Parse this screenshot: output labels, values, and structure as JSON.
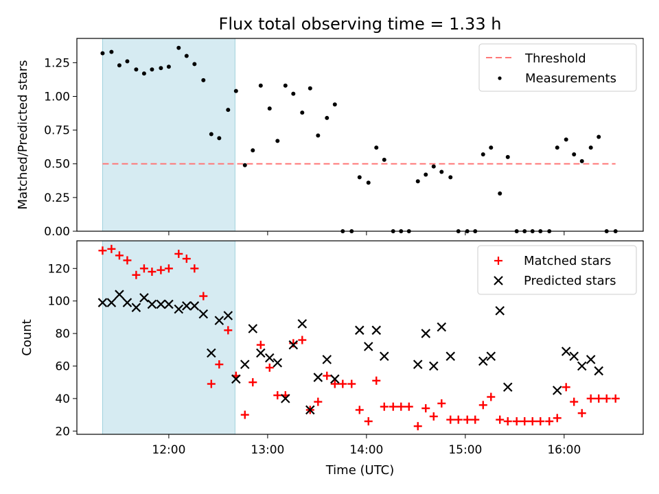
{
  "chart_data": [
    {
      "type": "scatter",
      "title": "Flux total observing time = 1.33 h",
      "xlabel": "",
      "ylabel": "Matched/Predicted stars",
      "xlim": [
        11.07,
        16.8
      ],
      "ylim": [
        0.0,
        1.43
      ],
      "yticks": [
        0.0,
        0.25,
        0.5,
        0.75,
        1.0,
        1.25
      ],
      "ytick_labels": [
        "0.00",
        "0.25",
        "0.50",
        "0.75",
        "1.00",
        "1.25"
      ],
      "shaded_span": [
        11.33,
        12.67
      ],
      "threshold": {
        "name": "Threshold",
        "value": 0.5,
        "x_range": [
          11.33,
          16.52
        ],
        "color": "#ff7777"
      },
      "legend": [
        "Threshold",
        "Measurements"
      ],
      "legend_position": "top-right",
      "series": [
        {
          "name": "Measurements",
          "marker": "dot",
          "color": "#000000",
          "x": [
            11.33,
            11.42,
            11.5,
            11.58,
            11.67,
            11.75,
            11.83,
            11.92,
            12.0,
            12.1,
            12.18,
            12.26,
            12.35,
            12.43,
            12.51,
            12.6,
            12.68,
            12.77,
            12.85,
            12.93,
            13.02,
            13.1,
            13.18,
            13.26,
            13.35,
            13.43,
            13.51,
            13.6,
            13.68,
            13.76,
            13.85,
            13.93,
            14.02,
            14.1,
            14.18,
            14.27,
            14.35,
            14.43,
            14.52,
            14.6,
            14.68,
            14.76,
            14.85,
            14.93,
            15.02,
            15.1,
            15.18,
            15.26,
            15.35,
            15.43,
            15.52,
            15.6,
            15.68,
            15.76,
            15.85,
            15.93,
            16.02,
            16.1,
            16.18,
            16.27,
            16.35,
            16.43,
            16.52
          ],
          "y": [
            1.32,
            1.33,
            1.23,
            1.26,
            1.2,
            1.17,
            1.2,
            1.21,
            1.22,
            1.36,
            1.3,
            1.24,
            1.12,
            0.72,
            0.69,
            0.9,
            1.04,
            0.49,
            0.6,
            1.08,
            0.91,
            0.67,
            1.08,
            1.02,
            0.88,
            1.06,
            0.71,
            0.84,
            0.94,
            0.0,
            0.0,
            0.4,
            0.36,
            0.62,
            0.53,
            0.0,
            0.0,
            0.0,
            0.37,
            0.42,
            0.48,
            0.44,
            0.4,
            0.0,
            0.0,
            0.0,
            0.57,
            0.62,
            0.28,
            0.55,
            0.0,
            0.0,
            0.0,
            0.0,
            0.0,
            0.62,
            0.68,
            0.57,
            0.52,
            0.62,
            0.7,
            0.0,
            0.0
          ]
        }
      ]
    },
    {
      "type": "scatter",
      "xlabel": "Time (UTC)",
      "ylabel": "Count",
      "xlim": [
        11.07,
        16.8
      ],
      "ylim": [
        18,
        137
      ],
      "xticks": [
        12,
        13,
        14,
        15,
        16
      ],
      "xtick_labels": [
        "12:00",
        "13:00",
        "14:00",
        "15:00",
        "16:00"
      ],
      "yticks": [
        20,
        40,
        60,
        80,
        100,
        120
      ],
      "ytick_labels": [
        "20",
        "40",
        "60",
        "80",
        "100",
        "120"
      ],
      "shaded_span": [
        11.33,
        12.67
      ],
      "legend": [
        "Matched stars",
        "Predicted stars"
      ],
      "legend_position": "top-right",
      "series": [
        {
          "name": "Matched stars",
          "marker": "plus",
          "color": "#ff0000",
          "x": [
            11.33,
            11.42,
            11.5,
            11.58,
            11.67,
            11.75,
            11.83,
            11.92,
            12.0,
            12.1,
            12.18,
            12.26,
            12.35,
            12.43,
            12.51,
            12.6,
            12.68,
            12.77,
            12.85,
            12.93,
            13.02,
            13.1,
            13.18,
            13.26,
            13.35,
            13.43,
            13.51,
            13.6,
            13.68,
            13.76,
            13.85,
            13.93,
            14.02,
            14.1,
            14.18,
            14.27,
            14.35,
            14.43,
            14.52,
            14.6,
            14.68,
            14.76,
            14.85,
            14.93,
            15.02,
            15.1,
            15.18,
            15.26,
            15.35,
            15.43,
            15.52,
            15.6,
            15.68,
            15.76,
            15.85,
            15.93,
            16.02,
            16.1,
            16.18,
            16.27,
            16.35,
            16.43,
            16.52
          ],
          "y": [
            131,
            132,
            128,
            125,
            116,
            120,
            118,
            119,
            120,
            129,
            126,
            120,
            103,
            49,
            61,
            82,
            54,
            30,
            50,
            73,
            59,
            42,
            42,
            74,
            76,
            33,
            38,
            54,
            49,
            49,
            49,
            33,
            26,
            51,
            35,
            35,
            35,
            35,
            23,
            34,
            29,
            37,
            27,
            27,
            27,
            27,
            36,
            41,
            27,
            26,
            26,
            26,
            26,
            26,
            26,
            28,
            47,
            38,
            31,
            40,
            40,
            40,
            40
          ]
        },
        {
          "name": "Predicted stars",
          "marker": "x",
          "color": "#000000",
          "x": [
            11.33,
            11.42,
            11.5,
            11.58,
            11.67,
            11.75,
            11.83,
            11.92,
            12.0,
            12.1,
            12.18,
            12.26,
            12.35,
            12.43,
            12.51,
            12.6,
            12.68,
            12.77,
            12.85,
            12.93,
            13.02,
            13.1,
            13.18,
            13.26,
            13.35,
            13.43,
            13.51,
            13.6,
            13.68,
            13.93,
            14.02,
            14.1,
            14.18,
            14.52,
            14.6,
            14.68,
            14.76,
            14.85,
            15.18,
            15.26,
            15.35,
            15.43,
            15.93,
            16.02,
            16.1,
            16.18,
            16.27,
            16.35
          ],
          "y": [
            99,
            99,
            104,
            99,
            96,
            102,
            98,
            98,
            98,
            95,
            97,
            97,
            92,
            68,
            88,
            91,
            52,
            61,
            83,
            68,
            65,
            62,
            40,
            73,
            86,
            33,
            53,
            64,
            52,
            82,
            72,
            82,
            66,
            61,
            80,
            60,
            84,
            66,
            63,
            66,
            94,
            47,
            45,
            69,
            66,
            60,
            64,
            57
          ]
        }
      ]
    }
  ]
}
